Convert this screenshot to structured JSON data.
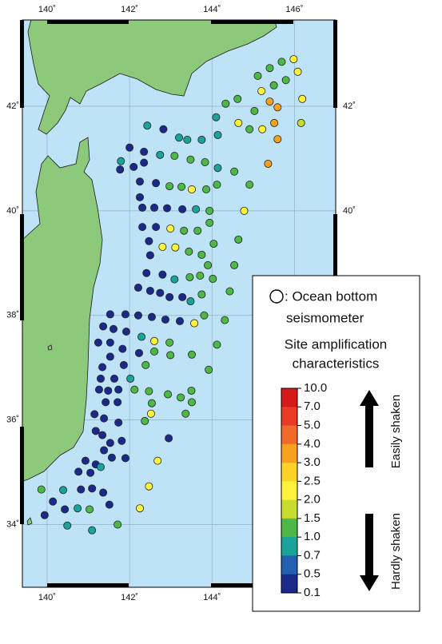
{
  "map": {
    "lon_range": [
      139.4,
      147.0
    ],
    "lat_range": [
      32.8,
      43.65
    ],
    "lon_ticks": [
      {
        "value": 140,
        "label": "140˚"
      },
      {
        "value": 142,
        "label": "142˚"
      },
      {
        "value": 144,
        "label": "144˚"
      },
      {
        "value": 146,
        "label": "146˚"
      }
    ],
    "lat_ticks": [
      {
        "value": 34,
        "label": "34˚"
      },
      {
        "value": 36,
        "label": "36˚"
      },
      {
        "value": 38,
        "label": "38˚"
      },
      {
        "value": 40,
        "label": "40˚"
      },
      {
        "value": 42,
        "label": "42˚"
      }
    ],
    "points": [
      [
        145.98,
        42.9,
        2.4
      ],
      [
        145.69,
        42.85,
        1.3
      ],
      [
        145.4,
        42.73,
        1.3
      ],
      [
        145.11,
        42.58,
        1.3
      ],
      [
        146.08,
        42.66,
        2.4
      ],
      [
        145.79,
        42.5,
        1.3
      ],
      [
        145.5,
        42.4,
        1.3
      ],
      [
        145.2,
        42.29,
        2.4
      ],
      [
        146.19,
        42.14,
        2.4
      ],
      [
        145.4,
        42.09,
        3.5
      ],
      [
        144.62,
        42.14,
        1.3
      ],
      [
        144.33,
        42.05,
        1.3
      ],
      [
        145.59,
        41.98,
        3.5
      ],
      [
        145.03,
        41.91,
        1.3
      ],
      [
        144.1,
        41.79,
        0.8
      ],
      [
        144.64,
        41.68,
        2.4
      ],
      [
        145.22,
        41.56,
        2.4
      ],
      [
        145.51,
        41.68,
        3.5
      ],
      [
        144.91,
        41.56,
        1.3
      ],
      [
        146.16,
        41.68,
        1.7
      ],
      [
        145.59,
        41.37,
        3.5
      ],
      [
        145.36,
        40.9,
        3.5
      ],
      [
        142.43,
        41.63,
        0.8
      ],
      [
        142.82,
        41.56,
        0.3
      ],
      [
        143.2,
        41.4,
        0.8
      ],
      [
        143.4,
        41.36,
        0.8
      ],
      [
        143.75,
        41.36,
        0.8
      ],
      [
        144.14,
        41.45,
        0.8
      ],
      [
        142.0,
        41.21,
        0.3
      ],
      [
        142.35,
        41.13,
        0.3
      ],
      [
        142.74,
        41.07,
        0.8
      ],
      [
        143.09,
        41.05,
        1.3
      ],
      [
        143.48,
        40.98,
        1.3
      ],
      [
        143.83,
        40.93,
        1.3
      ],
      [
        144.14,
        40.82,
        0.8
      ],
      [
        141.79,
        40.95,
        0.8
      ],
      [
        142.35,
        40.92,
        0.3
      ],
      [
        142.1,
        40.84,
        0.3
      ],
      [
        141.77,
        40.79,
        0.3
      ],
      [
        142.25,
        40.56,
        0.3
      ],
      [
        142.64,
        40.53,
        0.3
      ],
      [
        142.97,
        40.47,
        1.3
      ],
      [
        143.26,
        40.46,
        1.3
      ],
      [
        143.51,
        40.41,
        2.4
      ],
      [
        143.86,
        40.41,
        1.3
      ],
      [
        144.12,
        40.5,
        1.3
      ],
      [
        144.54,
        40.75,
        1.3
      ],
      [
        144.91,
        40.5,
        1.3
      ],
      [
        142.25,
        40.26,
        0.3
      ],
      [
        142.31,
        40.06,
        0.3
      ],
      [
        142.6,
        40.06,
        0.3
      ],
      [
        142.91,
        40.05,
        0.3
      ],
      [
        143.28,
        40.03,
        0.3
      ],
      [
        143.61,
        40.03,
        0.8
      ],
      [
        143.94,
        40.0,
        1.3
      ],
      [
        144.78,
        40.0,
        2.4
      ],
      [
        142.31,
        39.69,
        0.3
      ],
      [
        142.64,
        39.69,
        0.3
      ],
      [
        142.99,
        39.66,
        2.4
      ],
      [
        143.32,
        39.62,
        1.3
      ],
      [
        143.65,
        39.62,
        1.3
      ],
      [
        143.94,
        39.77,
        1.3
      ],
      [
        144.64,
        39.45,
        1.3
      ],
      [
        142.47,
        39.42,
        0.3
      ],
      [
        142.8,
        39.31,
        2.4
      ],
      [
        143.11,
        39.3,
        2.4
      ],
      [
        143.44,
        39.22,
        1.3
      ],
      [
        143.75,
        39.16,
        1.3
      ],
      [
        144.04,
        39.37,
        1.3
      ],
      [
        144.54,
        38.96,
        1.3
      ],
      [
        142.5,
        39.15,
        0.3
      ],
      [
        143.9,
        38.96,
        1.3
      ],
      [
        142.41,
        38.81,
        0.3
      ],
      [
        142.8,
        38.78,
        0.3
      ],
      [
        143.09,
        38.69,
        0.8
      ],
      [
        143.46,
        38.73,
        1.3
      ],
      [
        143.71,
        38.76,
        1.3
      ],
      [
        144.02,
        38.7,
        1.3
      ],
      [
        142.21,
        38.53,
        0.3
      ],
      [
        142.5,
        38.47,
        0.3
      ],
      [
        142.97,
        38.35,
        0.3
      ],
      [
        143.28,
        38.35,
        0.3
      ],
      [
        143.48,
        38.27,
        0.8
      ],
      [
        143.75,
        38.4,
        1.3
      ],
      [
        144.43,
        38.46,
        1.3
      ],
      [
        142.74,
        38.43,
        0.3
      ],
      [
        141.53,
        38.02,
        0.3
      ],
      [
        141.9,
        38.02,
        0.3
      ],
      [
        142.21,
        38.0,
        0.3
      ],
      [
        142.54,
        37.97,
        0.3
      ],
      [
        142.87,
        37.92,
        0.3
      ],
      [
        143.22,
        37.89,
        0.3
      ],
      [
        143.57,
        37.85,
        2.4
      ],
      [
        143.81,
        38.0,
        1.3
      ],
      [
        144.31,
        37.91,
        1.3
      ],
      [
        141.36,
        37.79,
        0.3
      ],
      [
        141.61,
        37.74,
        0.3
      ],
      [
        141.92,
        37.69,
        0.3
      ],
      [
        142.29,
        37.59,
        0.8
      ],
      [
        142.6,
        37.51,
        2.4
      ],
      [
        142.97,
        37.48,
        1.3
      ],
      [
        144.12,
        37.44,
        1.3
      ],
      [
        141.24,
        37.48,
        0.3
      ],
      [
        141.53,
        37.48,
        0.3
      ],
      [
        141.83,
        37.36,
        0.3
      ],
      [
        142.23,
        37.28,
        0.3
      ],
      [
        142.6,
        37.31,
        1.3
      ],
      [
        142.99,
        37.24,
        1.3
      ],
      [
        141.53,
        37.21,
        0.3
      ],
      [
        141.86,
        37.05,
        0.3
      ],
      [
        142.39,
        37.05,
        1.3
      ],
      [
        141.34,
        37.01,
        0.3
      ],
      [
        143.92,
        36.96,
        1.3
      ],
      [
        143.51,
        37.25,
        1.3
      ],
      [
        141.3,
        36.79,
        0.3
      ],
      [
        141.63,
        36.79,
        0.3
      ],
      [
        142.02,
        36.79,
        0.8
      ],
      [
        141.26,
        36.58,
        0.3
      ],
      [
        141.48,
        36.56,
        0.3
      ],
      [
        141.73,
        36.58,
        0.3
      ],
      [
        142.12,
        36.58,
        1.3
      ],
      [
        142.47,
        36.55,
        1.3
      ],
      [
        141.42,
        36.34,
        0.3
      ],
      [
        141.71,
        36.34,
        0.3
      ],
      [
        142.54,
        36.32,
        1.3
      ],
      [
        142.93,
        36.49,
        1.3
      ],
      [
        143.5,
        36.56,
        1.3
      ],
      [
        143.24,
        36.43,
        1.3
      ],
      [
        143.51,
        36.34,
        1.3
      ],
      [
        143.36,
        36.12,
        1.3
      ],
      [
        142.52,
        36.12,
        2.4
      ],
      [
        141.15,
        36.11,
        0.3
      ],
      [
        141.38,
        36.03,
        0.3
      ],
      [
        141.73,
        35.95,
        0.3
      ],
      [
        142.37,
        35.98,
        1.3
      ],
      [
        141.18,
        35.79,
        0.3
      ],
      [
        141.34,
        35.71,
        0.3
      ],
      [
        141.53,
        35.56,
        0.3
      ],
      [
        141.81,
        35.6,
        0.3
      ],
      [
        142.95,
        35.65,
        0.3
      ],
      [
        141.38,
        35.42,
        0.3
      ],
      [
        141.57,
        35.28,
        0.3
      ],
      [
        141.9,
        35.27,
        0.3
      ],
      [
        140.93,
        35.22,
        0.3
      ],
      [
        141.18,
        35.15,
        0.3
      ],
      [
        140.76,
        35.01,
        0.3
      ],
      [
        141.05,
        34.99,
        0.3
      ],
      [
        141.3,
        35.1,
        0.8
      ],
      [
        142.68,
        35.22,
        2.4
      ],
      [
        139.86,
        34.67,
        1.3
      ],
      [
        140.39,
        34.66,
        0.8
      ],
      [
        140.82,
        34.67,
        0.3
      ],
      [
        141.09,
        34.69,
        0.3
      ],
      [
        141.36,
        34.61,
        0.3
      ],
      [
        140.14,
        34.44,
        0.3
      ],
      [
        140.74,
        34.31,
        0.8
      ],
      [
        141.03,
        34.29,
        1.3
      ],
      [
        140.43,
        34.29,
        0.3
      ],
      [
        141.51,
        34.38,
        0.3
      ],
      [
        142.25,
        34.31,
        2.4
      ],
      [
        139.94,
        34.18,
        0.3
      ],
      [
        140.49,
        33.98,
        0.8
      ],
      [
        141.09,
        33.89,
        0.8
      ],
      [
        141.71,
        34.0,
        1.3
      ],
      [
        142.47,
        34.73,
        2.4
      ]
    ],
    "legend": {
      "symbol_label": [
        ": Ocean bottom",
        "seismometer"
      ],
      "title": [
        "Site amplification",
        "characteristics"
      ],
      "scale_ticks": [
        {
          "value": 10,
          "label": "10.0"
        },
        {
          "value": 7,
          "label": "7.0"
        },
        {
          "value": 5,
          "label": "5.0"
        },
        {
          "value": 4,
          "label": "4.0"
        },
        {
          "value": 3,
          "label": "3.0"
        },
        2.5,
        {
          "value": 2,
          "label": "2.0"
        },
        1.5,
        {
          "value": 1,
          "label": "1.0"
        },
        0.7,
        0.5,
        0.1
      ],
      "colors": [
        "#d7191c",
        "#ea3a24",
        "#f26a2a",
        "#f7a11f",
        "#fdd126",
        "#fff23a",
        "#c6dc2e",
        "#4db848",
        "#1aa39a",
        "#2360b0",
        "#1b2a8a"
      ],
      "up_label": "Easily shaken",
      "down_label": "Hardly shaken"
    }
  }
}
